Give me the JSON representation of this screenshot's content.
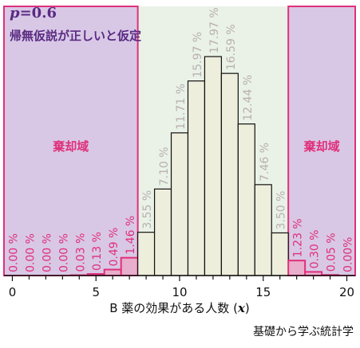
{
  "header": {
    "p_label": "p",
    "p_value": "=0.6",
    "hypothesis": "帰無仮説が正しいと仮定"
  },
  "credit": "基礎から学ぶ統計学",
  "rejection_label": "棄却域",
  "colors": {
    "rejection_fill": "#d8c8e6",
    "rejection_border": "#e0307a",
    "acceptance_fill": "#eaf2e7",
    "bar_fill": "#eeeedd",
    "bar_stroke": "#111111",
    "rejection_bar_fill": "#e8aecb",
    "label_gray": "#b8b0b0",
    "label_pink": "#e0307a",
    "axis": "#111111"
  },
  "chart_data": {
    "type": "bar",
    "x": [
      0,
      1,
      2,
      3,
      4,
      5,
      6,
      7,
      8,
      9,
      10,
      11,
      12,
      13,
      14,
      15,
      16,
      17,
      18,
      19,
      20
    ],
    "values": [
      0.0,
      0.0,
      0.0,
      0.0,
      0.03,
      0.13,
      0.49,
      1.46,
      3.55,
      7.1,
      11.71,
      15.97,
      17.97,
      16.59,
      12.44,
      7.46,
      3.5,
      1.23,
      0.3,
      0.05,
      0.0
    ],
    "labels": [
      "0.00 %",
      "0.00 %",
      "0.00 %",
      "0.00 %",
      "0.03 %",
      "0.13 %",
      "0.49 %",
      "1.46 %",
      "3.55 %",
      "7.10 %",
      "11.71 %",
      "15.97 %",
      "17.97 %",
      "16.59 %",
      "12.44 %",
      "7.46 %",
      "3.50 %",
      "1.23 %",
      "0.30 %",
      "0.05 %",
      "0.00%"
    ],
    "rejection_region": [
      [
        0,
        7
      ],
      [
        17,
        20
      ]
    ],
    "xticks": [
      "0",
      "5",
      "10",
      "15",
      "20"
    ],
    "xlabel": "B 薬の効果がある人数",
    "xlabel_var": "x",
    "xlim": [
      -0.5,
      20.5
    ],
    "ylim": [
      0,
      20
    ]
  }
}
